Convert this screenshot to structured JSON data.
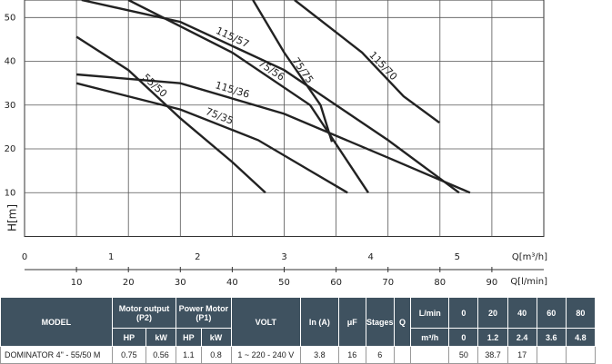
{
  "chart_data": {
    "type": "line",
    "y_label": "H[m]",
    "x_label": "Q[l/min]",
    "x2_label": "Q[m³/h]",
    "xlim": [
      0,
      100
    ],
    "xticks": [
      10,
      20,
      30,
      40,
      50,
      60,
      70,
      80,
      90
    ],
    "x2lim": [
      0,
      6
    ],
    "x2ticks": [
      0,
      1,
      2,
      3,
      4,
      5
    ],
    "ylim": [
      0,
      54
    ],
    "yticks": [
      10,
      20,
      30,
      40,
      50
    ],
    "grid": true,
    "series": [
      {
        "name": "55/50",
        "color": "#222222",
        "x": [
          10,
          20,
          30,
          40,
          46.4
        ],
        "values": [
          45.6,
          38,
          27,
          17,
          10
        ]
      },
      {
        "name": "75/35",
        "color": "#222222",
        "x": [
          10,
          30,
          45,
          55,
          62.2
        ],
        "values": [
          35,
          29,
          22,
          15,
          10
        ]
      },
      {
        "name": "115/36",
        "color": "#222222",
        "x": [
          10,
          30,
          50,
          70,
          85.8
        ],
        "values": [
          37,
          35,
          28,
          18,
          10
        ]
      },
      {
        "name": "115/57",
        "color": "#222222",
        "x": [
          11,
          30,
          50,
          70,
          83.7
        ],
        "values": [
          54,
          49,
          38,
          22,
          10
        ]
      },
      {
        "name": "75/56",
        "color": "#222222",
        "x": [
          20,
          40,
          55,
          66.2
        ],
        "values": [
          54,
          42,
          30,
          10
        ]
      },
      {
        "name": "75/75",
        "color": "#222222",
        "x": [
          44,
          50,
          57,
          59.2
        ],
        "values": [
          54,
          42,
          30,
          21.6
        ]
      },
      {
        "name": "115/70",
        "color": "#222222",
        "x": [
          52,
          65,
          73,
          79.9
        ],
        "values": [
          54,
          42,
          32,
          26
        ]
      }
    ]
  },
  "table": {
    "header": [
      "MODEL",
      "Motor output (P2)",
      "Power Motor (P1)",
      "VOLT",
      "In (A)",
      "μF",
      "Stages",
      "Q",
      "L/min",
      "m³/h"
    ],
    "subheader": [
      "HP",
      "kW",
      "HP",
      "kW"
    ],
    "flow_lmin": [
      "0",
      "20",
      "40",
      "60",
      "80"
    ],
    "flow_m3h": [
      "0",
      "1.2",
      "2.4",
      "3.6",
      "4.8"
    ],
    "rows": [
      [
        "DOMINATOR 4\" - 55/50 M",
        "0.75",
        "0.56",
        "1.1",
        "0.8",
        "1 ~ 220 - 240 V",
        "3.8",
        "16",
        "6",
        "50",
        "38.7",
        "17"
      ]
    ]
  }
}
